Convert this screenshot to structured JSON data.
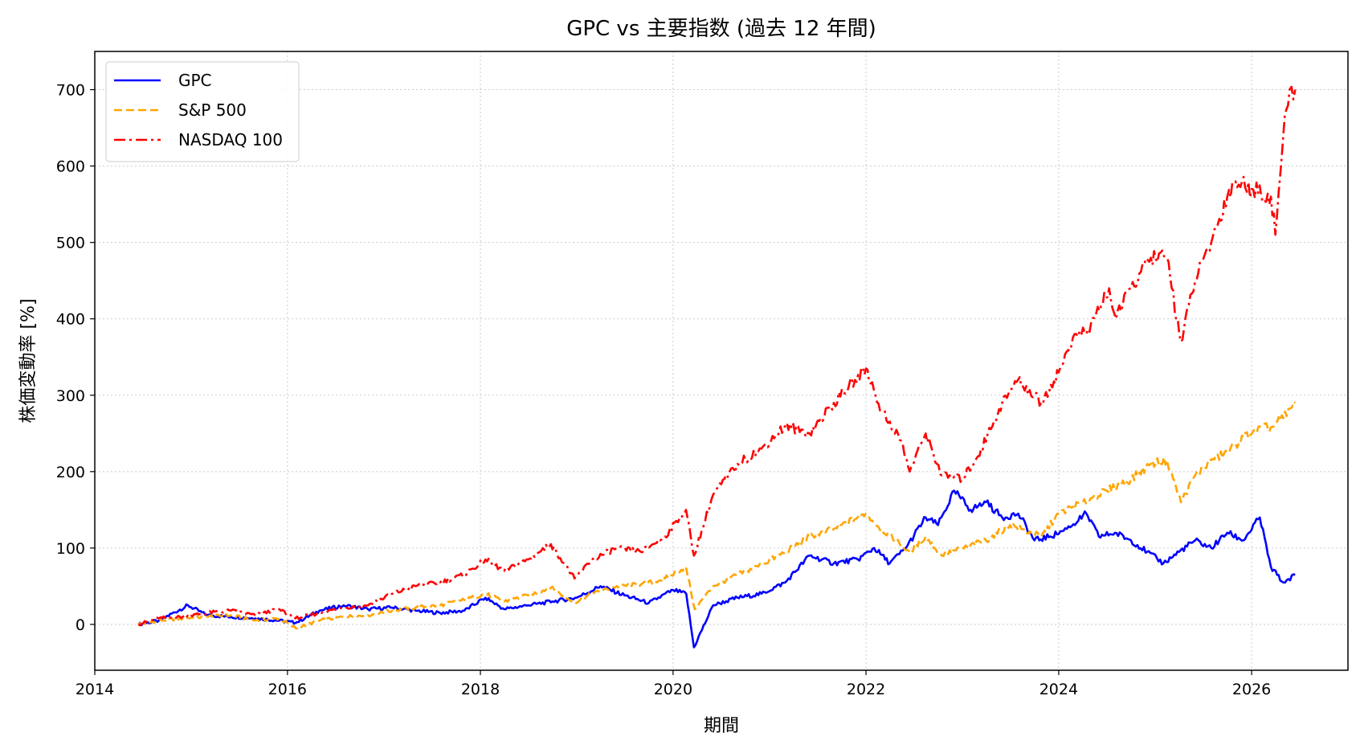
{
  "chart_data": {
    "type": "line",
    "title": "GPC vs 主要指数 (過去 12 年間)",
    "xlabel": "期間",
    "ylabel": "株価変動率 [%]",
    "xlim": [
      "2014-01-01",
      "2027-01-01"
    ],
    "ylim": [
      -60,
      750
    ],
    "x_ticks": [
      "2014",
      "2016",
      "2018",
      "2020",
      "2022",
      "2024",
      "2026"
    ],
    "y_ticks": [
      0,
      100,
      200,
      300,
      400,
      500,
      600,
      700
    ],
    "grid": true,
    "legend_position": "top-left",
    "series": [
      {
        "name": "GPC",
        "color": "#0000ff",
        "dash": "solid",
        "x": [
          "2014-06-15",
          "2014-09-01",
          "2014-12-20",
          "2015-03-01",
          "2015-06-01",
          "2015-09-01",
          "2015-12-01",
          "2016-02-01",
          "2016-05-01",
          "2016-08-01",
          "2016-11-01",
          "2017-02-01",
          "2017-05-01",
          "2017-08-01",
          "2017-11-01",
          "2018-01-20",
          "2018-04-01",
          "2018-07-01",
          "2018-10-01",
          "2019-01-01",
          "2019-04-01",
          "2019-07-01",
          "2019-10-01",
          "2020-01-01",
          "2020-02-20",
          "2020-03-20",
          "2020-06-01",
          "2020-09-01",
          "2020-12-01",
          "2021-03-01",
          "2021-06-01",
          "2021-09-01",
          "2021-12-01",
          "2022-02-01",
          "2022-04-01",
          "2022-06-01",
          "2022-08-15",
          "2022-10-01",
          "2022-12-01",
          "2023-02-01",
          "2023-04-01",
          "2023-06-01",
          "2023-08-01",
          "2023-10-01",
          "2023-12-01",
          "2024-02-01",
          "2024-04-15",
          "2024-06-01",
          "2024-08-01",
          "2024-10-01",
          "2024-12-01",
          "2025-02-01",
          "2025-04-01",
          "2025-06-01",
          "2025-08-01",
          "2025-10-01",
          "2025-12-01",
          "2026-02-01",
          "2026-03-15",
          "2026-05-01",
          "2026-06-15"
        ],
        "values": [
          0,
          5,
          25,
          12,
          10,
          8,
          5,
          2,
          18,
          25,
          20,
          22,
          18,
          15,
          18,
          35,
          20,
          25,
          30,
          35,
          50,
          38,
          28,
          45,
          40,
          -30,
          25,
          35,
          40,
          55,
          90,
          80,
          85,
          100,
          80,
          100,
          140,
          130,
          175,
          150,
          160,
          140,
          145,
          110,
          115,
          125,
          145,
          115,
          120,
          110,
          95,
          80,
          95,
          110,
          100,
          120,
          110,
          140,
          75,
          55,
          65
        ]
      },
      {
        "name": "S&P 500",
        "color": "#ffa500",
        "dash": "dashed",
        "x": [
          "2014-06-15",
          "2014-09-01",
          "2014-12-01",
          "2015-03-01",
          "2015-06-01",
          "2015-09-01",
          "2015-12-01",
          "2016-02-01",
          "2016-05-01",
          "2016-08-01",
          "2016-11-01",
          "2017-02-01",
          "2017-05-01",
          "2017-08-01",
          "2017-11-01",
          "2018-01-20",
          "2018-04-01",
          "2018-07-01",
          "2018-09-25",
          "2018-12-24",
          "2019-03-01",
          "2019-06-01",
          "2019-09-01",
          "2019-12-01",
          "2020-02-19",
          "2020-03-23",
          "2020-06-01",
          "2020-09-01",
          "2020-12-01",
          "2021-03-01",
          "2021-06-01",
          "2021-09-01",
          "2021-12-31",
          "2022-03-01",
          "2022-06-15",
          "2022-08-15",
          "2022-10-15",
          "2023-01-01",
          "2023-04-01",
          "2023-07-01",
          "2023-10-27",
          "2024-01-01",
          "2024-04-01",
          "2024-07-01",
          "2024-10-01",
          "2024-12-15",
          "2025-02-15",
          "2025-04-08",
          "2025-06-01",
          "2025-08-01",
          "2025-10-01",
          "2025-12-01",
          "2026-01-15",
          "2026-03-15",
          "2026-05-01",
          "2026-06-15"
        ],
        "values": [
          0,
          5,
          8,
          10,
          12,
          5,
          8,
          -5,
          5,
          10,
          12,
          18,
          22,
          25,
          32,
          40,
          30,
          38,
          48,
          28,
          40,
          50,
          52,
          60,
          75,
          20,
          50,
          65,
          78,
          95,
          115,
          125,
          145,
          125,
          95,
          115,
          90,
          100,
          110,
          130,
          115,
          145,
          160,
          175,
          190,
          210,
          215,
          160,
          195,
          215,
          225,
          245,
          255,
          258,
          270,
          290
        ]
      },
      {
        "name": "NASDAQ 100",
        "color": "#ff0000",
        "dash": "dashdot",
        "x": [
          "2014-06-15",
          "2014-09-01",
          "2014-12-01",
          "2015-03-01",
          "2015-06-01",
          "2015-09-01",
          "2015-12-01",
          "2016-02-01",
          "2016-05-01",
          "2016-08-01",
          "2016-11-01",
          "2017-02-01",
          "2017-05-01",
          "2017-08-01",
          "2017-11-01",
          "2018-01-20",
          "2018-04-01",
          "2018-07-01",
          "2018-09-25",
          "2018-12-24",
          "2019-03-01",
          "2019-06-01",
          "2019-09-01",
          "2019-12-01",
          "2020-02-19",
          "2020-03-20",
          "2020-06-01",
          "2020-09-01",
          "2020-12-01",
          "2021-03-01",
          "2021-06-01",
          "2021-09-01",
          "2021-11-20",
          "2022-01-01",
          "2022-03-01",
          "2022-05-15",
          "2022-06-15",
          "2022-08-15",
          "2022-10-15",
          "2022-12-31",
          "2023-03-01",
          "2023-06-01",
          "2023-07-31",
          "2023-10-27",
          "2024-01-01",
          "2024-03-01",
          "2024-04-15",
          "2024-07-10",
          "2024-08-05",
          "2024-10-01",
          "2024-12-15",
          "2025-02-15",
          "2025-04-08",
          "2025-06-01",
          "2025-08-01",
          "2025-10-01",
          "2025-11-01",
          "2026-01-01",
          "2026-03-15",
          "2026-04-01",
          "2026-05-01",
          "2026-05-25",
          "2026-06-15"
        ],
        "values": [
          0,
          8,
          10,
          15,
          18,
          12,
          20,
          8,
          15,
          22,
          25,
          40,
          50,
          55,
          65,
          85,
          70,
          85,
          105,
          60,
          85,
          100,
          95,
          115,
          150,
          90,
          170,
          210,
          230,
          260,
          250,
          290,
          320,
          335,
          280,
          240,
          200,
          250,
          195,
          190,
          220,
          290,
          320,
          290,
          330,
          380,
          380,
          440,
          400,
          440,
          480,
          480,
          370,
          450,
          500,
          560,
          580,
          570,
          560,
          510,
          640,
          700,
          700
        ]
      }
    ]
  }
}
